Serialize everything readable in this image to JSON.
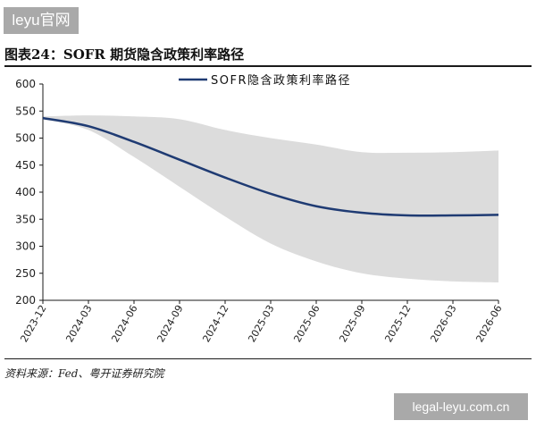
{
  "watermarks": {
    "top": "leyu官网",
    "bottom": "legal-leyu.com.cn"
  },
  "figure_title": "图表24：SOFR 期货隐含政策利率路径",
  "source": "资料来源：Fed、粤开证券研究院",
  "colors": {
    "line": "#1f3b73",
    "band": "#dcdcdc",
    "axis": "#1a1a1a"
  },
  "chart_data": {
    "type": "line",
    "legend_position": "top-center",
    "grid": false,
    "ylim": [
      200,
      600
    ],
    "yticks": [
      200,
      250,
      300,
      350,
      400,
      450,
      500,
      550,
      600
    ],
    "x_tick_labels": [
      "2023-12",
      "2024-03",
      "2024-06",
      "2024-09",
      "2024-12",
      "2025-03",
      "2025-06",
      "2025-09",
      "2025-12",
      "2026-03",
      "2026-06"
    ],
    "series": [
      {
        "name": "SOFR隐含政策利率路径",
        "values": [
          537,
          522,
          493,
          460,
          427,
          397,
          374,
          362,
          357,
          357,
          358
        ]
      }
    ],
    "band": {
      "upper": [
        540,
        542,
        540,
        535,
        515,
        500,
        488,
        474,
        473,
        474,
        477
      ],
      "lower": [
        535,
        515,
        465,
        410,
        355,
        305,
        272,
        250,
        240,
        235,
        233
      ]
    }
  }
}
